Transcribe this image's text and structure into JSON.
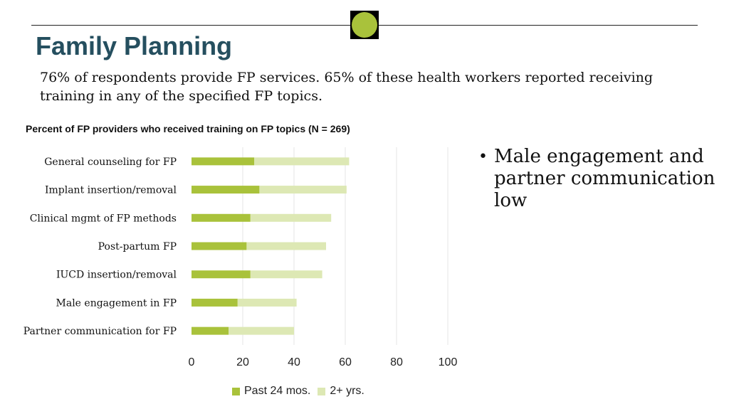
{
  "slide": {
    "title": "Family Planning",
    "subtitle": "76% of respondents provide FP services. 65% of these health workers reported receiving training in any of the specified FP topics.",
    "bullet": "Male engagement and partner communication low"
  },
  "colors": {
    "accent": "#a9c23b",
    "title": "#254f5f",
    "past": "#a9c23b",
    "older": "#dde8b4"
  },
  "chart_data": {
    "type": "bar",
    "orientation": "horizontal",
    "stacked": true,
    "title": "Percent of FP providers who received training on FP topics (N = 269)",
    "categories": [
      "General counseling for FP",
      "Implant insertion/removal",
      "Clinical mgmt of FP methods",
      "Post-partum FP",
      "IUCD insertion/removal",
      "Male engagement in FP",
      "Partner communication for FP"
    ],
    "series": [
      {
        "name": "Past 24 mos.",
        "values": [
          24.5,
          26.5,
          23,
          21.5,
          23,
          18,
          14.5
        ]
      },
      {
        "name": "2+ yrs.",
        "values": [
          37,
          34,
          31.5,
          31,
          28,
          23,
          25.5
        ]
      }
    ],
    "xlim": [
      0,
      100
    ],
    "xticks": [
      0,
      20,
      40,
      60,
      80,
      100
    ],
    "grid": true,
    "legend": "bottom"
  }
}
